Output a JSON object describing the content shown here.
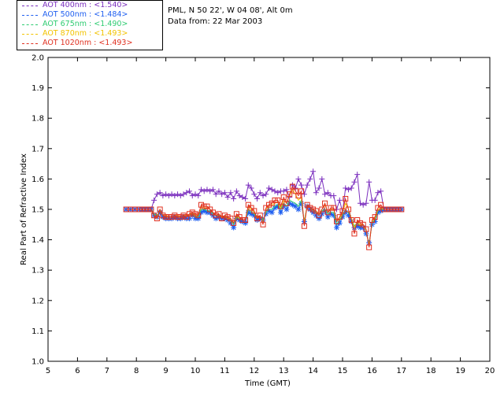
{
  "legend": [
    {
      "label": "AOT  400nm : <1.540>",
      "color": "#7b2fbe"
    },
    {
      "label": "AOT  500nm : <1.484>",
      "color": "#1f5ff0"
    },
    {
      "label": "AOT  675nm : <1.490>",
      "color": "#2ecc71"
    },
    {
      "label": "AOT  870nm : <1.493>",
      "color": "#f2c300"
    },
    {
      "label": "AOT 1020nm : <1.493>",
      "color": "#e03020"
    }
  ],
  "info": {
    "site": "PML, N 50 22', W 04 08', Alt 0m",
    "date": "Data from: 22 Mar 2003"
  },
  "chart_data": {
    "type": "line",
    "xlabel": "Time (GMT)",
    "ylabel": "Real Part of Refractive Index",
    "xlim": [
      5,
      20
    ],
    "ylim": [
      1.0,
      2.0
    ],
    "xticks": [
      5,
      6,
      7,
      8,
      9,
      10,
      11,
      12,
      13,
      14,
      15,
      16,
      17,
      18,
      19,
      20
    ],
    "yticks": [
      "1.0",
      "1.1",
      "1.2",
      "1.3",
      "1.4",
      "1.5",
      "1.6",
      "1.7",
      "1.8",
      "1.9",
      "2.0"
    ],
    "x": [
      7.65,
      7.8,
      7.95,
      8.1,
      8.2,
      8.3,
      8.4,
      8.5,
      8.6,
      8.7,
      8.8,
      8.9,
      9.0,
      9.1,
      9.2,
      9.3,
      9.4,
      9.5,
      9.6,
      9.7,
      9.8,
      9.9,
      10.0,
      10.1,
      10.2,
      10.3,
      10.4,
      10.5,
      10.6,
      10.7,
      10.8,
      10.9,
      11.0,
      11.1,
      11.2,
      11.3,
      11.4,
      11.5,
      11.6,
      11.7,
      11.8,
      11.9,
      12.0,
      12.1,
      12.2,
      12.3,
      12.4,
      12.5,
      12.6,
      12.7,
      12.8,
      12.9,
      13.0,
      13.1,
      13.2,
      13.3,
      13.4,
      13.5,
      13.6,
      13.7,
      13.8,
      13.9,
      14.0,
      14.1,
      14.2,
      14.3,
      14.4,
      14.5,
      14.6,
      14.7,
      14.8,
      14.9,
      15.0,
      15.1,
      15.2,
      15.3,
      15.4,
      15.5,
      15.6,
      15.7,
      15.8,
      15.9,
      16.0,
      16.1,
      16.2,
      16.3,
      16.4,
      16.5,
      16.6,
      16.7,
      16.8,
      16.9,
      17.0
    ],
    "series": [
      {
        "name": "AOT 400nm",
        "color": "#7b2fbe",
        "marker": "plus",
        "values": [
          1.5,
          1.5,
          1.5,
          1.5,
          1.5,
          1.5,
          1.5,
          1.5,
          1.53,
          1.55,
          1.555,
          1.545,
          1.55,
          1.545,
          1.55,
          1.545,
          1.55,
          1.545,
          1.55,
          1.555,
          1.56,
          1.545,
          1.55,
          1.545,
          1.565,
          1.56,
          1.565,
          1.56,
          1.565,
          1.55,
          1.56,
          1.55,
          1.555,
          1.54,
          1.555,
          1.535,
          1.56,
          1.545,
          1.54,
          1.535,
          1.58,
          1.57,
          1.55,
          1.535,
          1.555,
          1.545,
          1.55,
          1.57,
          1.565,
          1.56,
          1.555,
          1.56,
          1.56,
          1.565,
          1.54,
          1.58,
          1.57,
          1.6,
          1.58,
          1.55,
          1.58,
          1.6,
          1.625,
          1.555,
          1.57,
          1.6,
          1.55,
          1.555,
          1.545,
          1.545,
          1.5,
          1.53,
          1.49,
          1.57,
          1.565,
          1.57,
          1.59,
          1.615,
          1.52,
          1.515,
          1.52,
          1.59,
          1.53,
          1.53,
          1.555,
          1.56,
          1.5,
          1.5,
          1.5,
          1.5,
          1.5,
          1.5,
          1.5
        ]
      },
      {
        "name": "AOT 500nm",
        "color": "#1f5ff0",
        "marker": "star",
        "values": [
          1.5,
          1.5,
          1.5,
          1.5,
          1.5,
          1.5,
          1.5,
          1.5,
          1.48,
          1.475,
          1.49,
          1.475,
          1.47,
          1.47,
          1.47,
          1.475,
          1.47,
          1.47,
          1.475,
          1.47,
          1.47,
          1.48,
          1.47,
          1.47,
          1.49,
          1.495,
          1.49,
          1.49,
          1.48,
          1.47,
          1.475,
          1.47,
          1.47,
          1.465,
          1.455,
          1.44,
          1.47,
          1.465,
          1.46,
          1.455,
          1.49,
          1.485,
          1.48,
          1.465,
          1.47,
          1.465,
          1.485,
          1.495,
          1.49,
          1.505,
          1.51,
          1.49,
          1.51,
          1.5,
          1.52,
          1.515,
          1.51,
          1.5,
          1.52,
          1.46,
          1.51,
          1.5,
          1.49,
          1.48,
          1.47,
          1.485,
          1.495,
          1.475,
          1.485,
          1.48,
          1.44,
          1.455,
          1.475,
          1.49,
          1.48,
          1.46,
          1.44,
          1.445,
          1.44,
          1.44,
          1.42,
          1.39,
          1.45,
          1.46,
          1.49,
          1.495,
          1.5,
          1.5,
          1.5,
          1.5,
          1.5,
          1.5,
          1.5
        ]
      },
      {
        "name": "AOT 675nm",
        "color": "#2ecc71",
        "marker": "none",
        "values": [
          1.5,
          1.5,
          1.5,
          1.5,
          1.5,
          1.5,
          1.5,
          1.5,
          1.485,
          1.48,
          1.495,
          1.48,
          1.475,
          1.475,
          1.475,
          1.48,
          1.475,
          1.475,
          1.48,
          1.48,
          1.48,
          1.485,
          1.475,
          1.475,
          1.5,
          1.5,
          1.495,
          1.495,
          1.485,
          1.48,
          1.48,
          1.475,
          1.475,
          1.47,
          1.465,
          1.45,
          1.475,
          1.47,
          1.465,
          1.465,
          1.5,
          1.49,
          1.485,
          1.47,
          1.475,
          1.465,
          1.49,
          1.5,
          1.5,
          1.51,
          1.515,
          1.5,
          1.52,
          1.51,
          1.53,
          1.525,
          1.52,
          1.51,
          1.53,
          1.46,
          1.515,
          1.505,
          1.495,
          1.49,
          1.48,
          1.495,
          1.5,
          1.485,
          1.49,
          1.49,
          1.45,
          1.465,
          1.48,
          1.495,
          1.49,
          1.47,
          1.445,
          1.455,
          1.445,
          1.45,
          1.43,
          1.385,
          1.455,
          1.465,
          1.495,
          1.5,
          1.5,
          1.5,
          1.5,
          1.5,
          1.5,
          1.5,
          1.5
        ]
      },
      {
        "name": "AOT 870nm",
        "color": "#f2c300",
        "marker": "none",
        "values": [
          1.5,
          1.5,
          1.5,
          1.5,
          1.5,
          1.5,
          1.5,
          1.5,
          1.48,
          1.475,
          1.5,
          1.48,
          1.48,
          1.475,
          1.475,
          1.48,
          1.48,
          1.475,
          1.48,
          1.48,
          1.48,
          1.49,
          1.48,
          1.48,
          1.51,
          1.505,
          1.505,
          1.5,
          1.49,
          1.48,
          1.485,
          1.475,
          1.48,
          1.47,
          1.47,
          1.455,
          1.48,
          1.47,
          1.465,
          1.465,
          1.51,
          1.5,
          1.49,
          1.475,
          1.48,
          1.455,
          1.5,
          1.51,
          1.515,
          1.52,
          1.525,
          1.505,
          1.53,
          1.52,
          1.545,
          1.565,
          1.55,
          1.53,
          1.54,
          1.455,
          1.515,
          1.505,
          1.5,
          1.495,
          1.485,
          1.5,
          1.515,
          1.49,
          1.5,
          1.5,
          1.46,
          1.47,
          1.49,
          1.52,
          1.5,
          1.47,
          1.44,
          1.46,
          1.45,
          1.45,
          1.43,
          1.38,
          1.46,
          1.47,
          1.5,
          1.505,
          1.5,
          1.5,
          1.5,
          1.5,
          1.5,
          1.5,
          1.5
        ]
      },
      {
        "name": "AOT 1020nm",
        "color": "#e03020",
        "marker": "square",
        "values": [
          1.5,
          1.5,
          1.5,
          1.5,
          1.5,
          1.5,
          1.5,
          1.5,
          1.48,
          1.47,
          1.5,
          1.48,
          1.475,
          1.475,
          1.475,
          1.48,
          1.475,
          1.475,
          1.48,
          1.475,
          1.485,
          1.49,
          1.485,
          1.48,
          1.515,
          1.51,
          1.51,
          1.5,
          1.49,
          1.48,
          1.485,
          1.47,
          1.48,
          1.475,
          1.47,
          1.455,
          1.485,
          1.475,
          1.465,
          1.465,
          1.515,
          1.505,
          1.495,
          1.47,
          1.48,
          1.45,
          1.505,
          1.515,
          1.52,
          1.53,
          1.53,
          1.51,
          1.54,
          1.52,
          1.55,
          1.575,
          1.56,
          1.545,
          1.56,
          1.445,
          1.515,
          1.505,
          1.5,
          1.495,
          1.48,
          1.5,
          1.52,
          1.49,
          1.505,
          1.505,
          1.46,
          1.475,
          1.495,
          1.535,
          1.5,
          1.465,
          1.42,
          1.465,
          1.455,
          1.45,
          1.435,
          1.375,
          1.465,
          1.475,
          1.505,
          1.515,
          1.5,
          1.5,
          1.5,
          1.5,
          1.5,
          1.5,
          1.5
        ]
      }
    ]
  }
}
